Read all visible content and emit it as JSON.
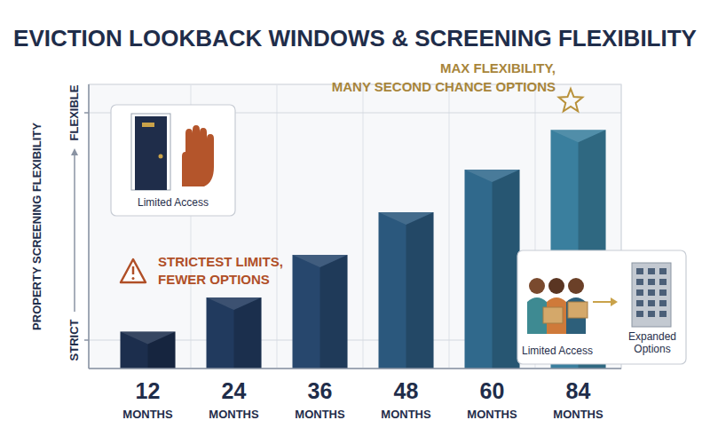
{
  "chart_data": {
    "type": "bar",
    "title": "EVICTION LOOKBACK WINDOWS & SCREENING FLEXIBILITY",
    "y_label": "PROPERTY SCREENING FLEXIBILITY",
    "categories": [
      "12 MONTHS",
      "24 MONTHS",
      "36 MONTHS",
      "48 MONTHS",
      "60 MONTHS",
      "84 MONTHS"
    ],
    "values": [
      13,
      25,
      40,
      55,
      70,
      84
    ],
    "colors": [
      "#1c2e4d",
      "#213a5e",
      "#27476d",
      "#2b587d",
      "#30698c",
      "#3a7f9e"
    ],
    "ylim": [
      0,
      100
    ],
    "yticks": [
      {
        "value": 10,
        "label": "STRICT"
      },
      {
        "value": 90,
        "label": "FLEXIBLE"
      }
    ],
    "grid": true,
    "annotations": [
      "MAX FLEXIBILITY, MANY SECOND CHANCE OPTIONS",
      "STRICTEST LIMITS, FEWER OPTIONS",
      "Limited Access",
      "Limited Access",
      "Expanded Options"
    ]
  }
}
